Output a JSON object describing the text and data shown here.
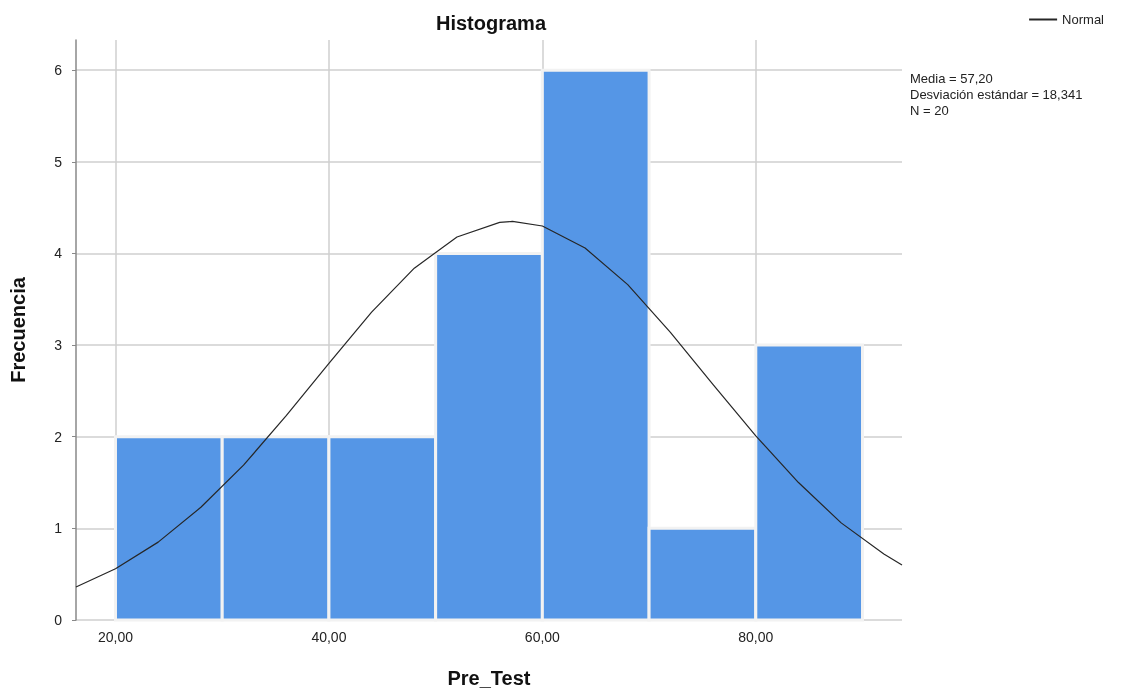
{
  "chart_data": {
    "type": "histogram",
    "title": "Histograma",
    "xlabel": "Pre_Test",
    "ylabel": "Frecuencia",
    "bins": [
      20,
      30,
      40,
      50,
      60,
      70,
      80,
      90
    ],
    "values": [
      2,
      2,
      2,
      4,
      6,
      1,
      3
    ],
    "color": "#5596e6",
    "series": [
      {
        "type": "line",
        "name": "Normal",
        "color": "#262626",
        "x": [
          16.3,
          20,
          24,
          28,
          32,
          36,
          40,
          44,
          48,
          52,
          56,
          57.2,
          60,
          64,
          68,
          72,
          76,
          80,
          84,
          88,
          92,
          93.7
        ],
        "values": [
          0.36,
          0.56,
          0.85,
          1.23,
          1.69,
          2.23,
          2.8,
          3.36,
          3.84,
          4.18,
          4.34,
          4.35,
          4.3,
          4.06,
          3.66,
          3.14,
          2.57,
          2.01,
          1.5,
          1.06,
          0.72,
          0.6
        ]
      }
    ],
    "xlim": [
      16.3,
      93.7
    ],
    "ylim": [
      0,
      6.33
    ],
    "xticks": [
      {
        "value": 20,
        "label": "20,00"
      },
      {
        "value": 40,
        "label": "40,00"
      },
      {
        "value": 60,
        "label": "60,00"
      },
      {
        "value": 80,
        "label": "80,00"
      }
    ],
    "yticks": [
      0,
      1,
      2,
      3,
      4,
      5,
      6
    ],
    "grid": true,
    "legend": "top right",
    "marker": "none",
    "annotations": [
      "Media = 57,20",
      "Desviación estándar = 18,341",
      "N = 20"
    ]
  }
}
